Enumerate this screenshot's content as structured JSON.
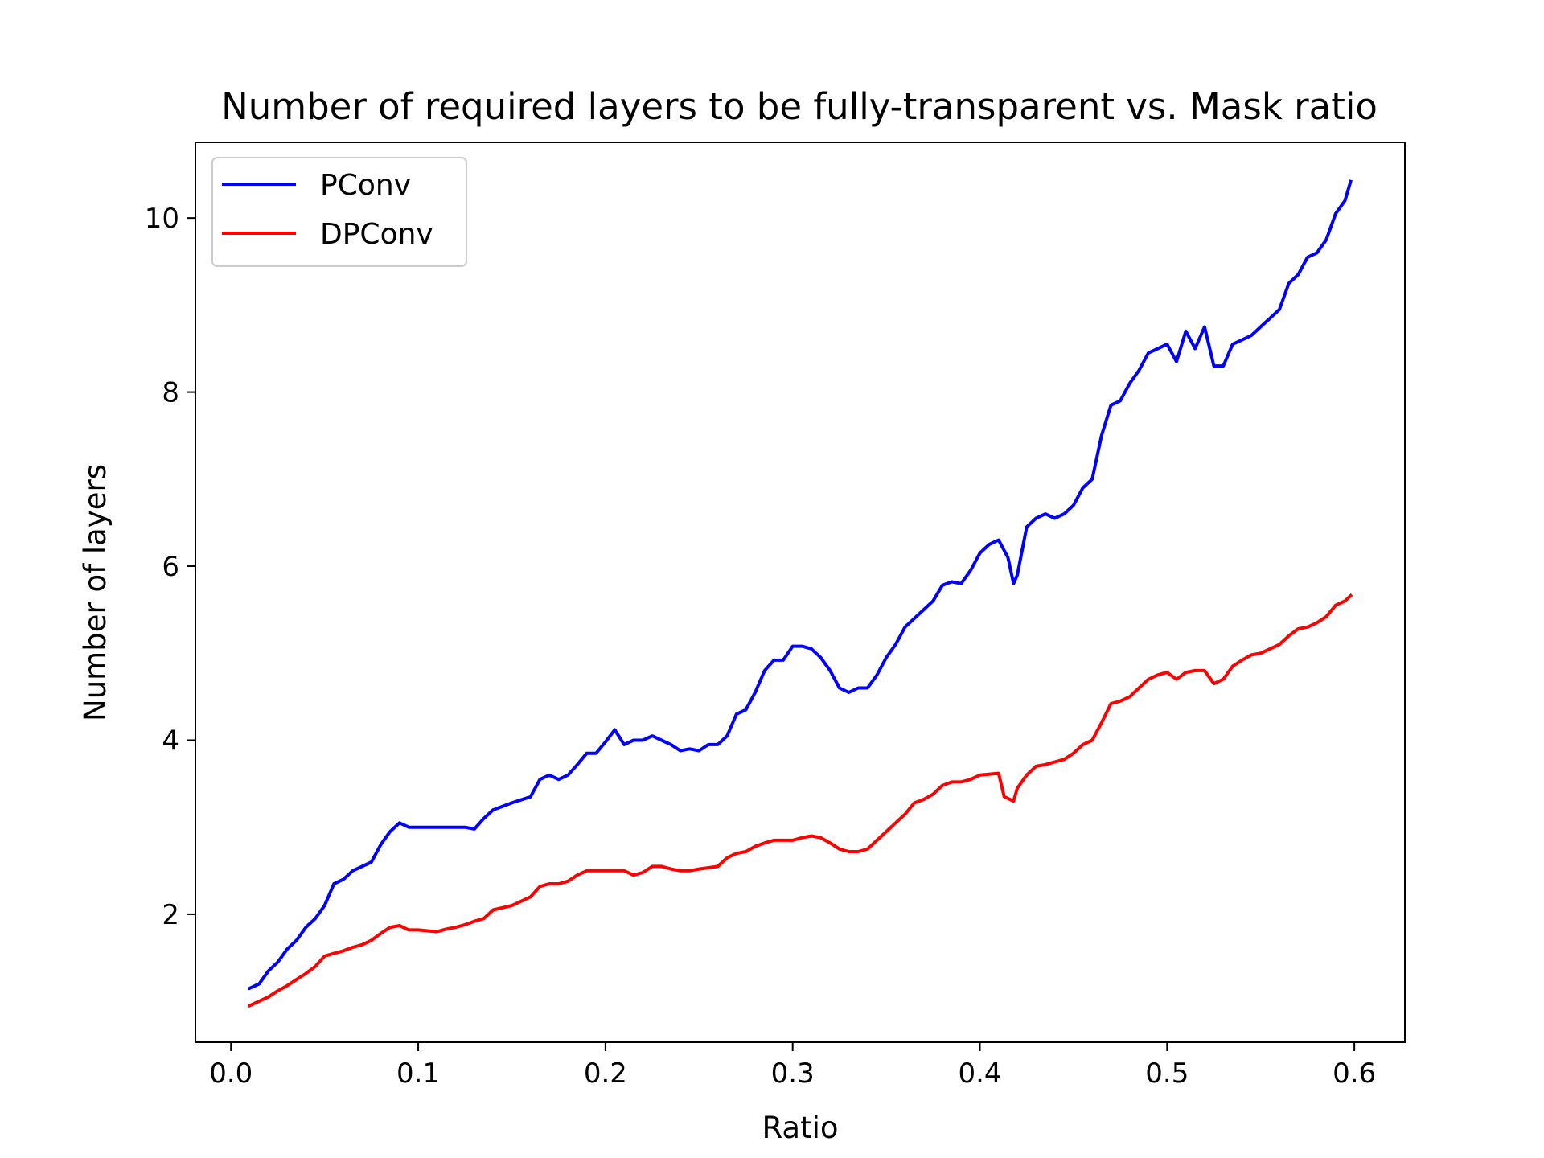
{
  "chart_data": {
    "type": "line",
    "title": "Number of required layers to be fully-transparent vs. Mask ratio",
    "xlabel": "Ratio",
    "ylabel": "Number of layers",
    "xlim": [
      -0.019,
      0.627
    ],
    "ylim": [
      0.53,
      10.87
    ],
    "xticks": [
      {
        "value": 0.0,
        "label": "0.0"
      },
      {
        "value": 0.1,
        "label": "0.1"
      },
      {
        "value": 0.2,
        "label": "0.2"
      },
      {
        "value": 0.3,
        "label": "0.3"
      },
      {
        "value": 0.4,
        "label": "0.4"
      },
      {
        "value": 0.5,
        "label": "0.5"
      },
      {
        "value": 0.6,
        "label": "0.6"
      }
    ],
    "yticks": [
      {
        "value": 2,
        "label": "2"
      },
      {
        "value": 4,
        "label": "4"
      },
      {
        "value": 6,
        "label": "6"
      },
      {
        "value": 8,
        "label": "8"
      },
      {
        "value": 10,
        "label": "10"
      }
    ],
    "grid": false,
    "legend_position": "top-left",
    "series": [
      {
        "name": "PConv",
        "color": "#0000ff",
        "points": [
          [
            0.01,
            1.15
          ],
          [
            0.015,
            1.2
          ],
          [
            0.02,
            1.35
          ],
          [
            0.025,
            1.45
          ],
          [
            0.03,
            1.6
          ],
          [
            0.035,
            1.7
          ],
          [
            0.04,
            1.85
          ],
          [
            0.045,
            1.95
          ],
          [
            0.05,
            2.1
          ],
          [
            0.055,
            2.35
          ],
          [
            0.06,
            2.4
          ],
          [
            0.065,
            2.5
          ],
          [
            0.07,
            2.55
          ],
          [
            0.075,
            2.6
          ],
          [
            0.08,
            2.8
          ],
          [
            0.085,
            2.95
          ],
          [
            0.09,
            3.05
          ],
          [
            0.095,
            3.0
          ],
          [
            0.1,
            3.0
          ],
          [
            0.11,
            3.0
          ],
          [
            0.12,
            3.0
          ],
          [
            0.125,
            3.0
          ],
          [
            0.13,
            2.98
          ],
          [
            0.135,
            3.1
          ],
          [
            0.14,
            3.2
          ],
          [
            0.15,
            3.28
          ],
          [
            0.16,
            3.35
          ],
          [
            0.165,
            3.55
          ],
          [
            0.17,
            3.6
          ],
          [
            0.175,
            3.55
          ],
          [
            0.18,
            3.6
          ],
          [
            0.185,
            3.72
          ],
          [
            0.19,
            3.85
          ],
          [
            0.195,
            3.85
          ],
          [
            0.2,
            3.98
          ],
          [
            0.205,
            4.12
          ],
          [
            0.21,
            3.95
          ],
          [
            0.215,
            4.0
          ],
          [
            0.22,
            4.0
          ],
          [
            0.225,
            4.05
          ],
          [
            0.23,
            4.0
          ],
          [
            0.235,
            3.95
          ],
          [
            0.24,
            3.88
          ],
          [
            0.245,
            3.9
          ],
          [
            0.25,
            3.88
          ],
          [
            0.255,
            3.95
          ],
          [
            0.26,
            3.95
          ],
          [
            0.265,
            4.05
          ],
          [
            0.27,
            4.3
          ],
          [
            0.275,
            4.35
          ],
          [
            0.28,
            4.55
          ],
          [
            0.285,
            4.8
          ],
          [
            0.29,
            4.92
          ],
          [
            0.295,
            4.92
          ],
          [
            0.3,
            5.08
          ],
          [
            0.305,
            5.08
          ],
          [
            0.31,
            5.05
          ],
          [
            0.315,
            4.95
          ],
          [
            0.32,
            4.8
          ],
          [
            0.325,
            4.6
          ],
          [
            0.33,
            4.55
          ],
          [
            0.335,
            4.6
          ],
          [
            0.34,
            4.6
          ],
          [
            0.345,
            4.75
          ],
          [
            0.35,
            4.95
          ],
          [
            0.355,
            5.1
          ],
          [
            0.36,
            5.3
          ],
          [
            0.365,
            5.4
          ],
          [
            0.37,
            5.5
          ],
          [
            0.375,
            5.6
          ],
          [
            0.38,
            5.78
          ],
          [
            0.385,
            5.82
          ],
          [
            0.39,
            5.8
          ],
          [
            0.395,
            5.95
          ],
          [
            0.4,
            6.15
          ],
          [
            0.405,
            6.25
          ],
          [
            0.41,
            6.3
          ],
          [
            0.415,
            6.1
          ],
          [
            0.418,
            5.8
          ],
          [
            0.42,
            5.9
          ],
          [
            0.425,
            6.45
          ],
          [
            0.43,
            6.55
          ],
          [
            0.435,
            6.6
          ],
          [
            0.44,
            6.55
          ],
          [
            0.445,
            6.6
          ],
          [
            0.45,
            6.7
          ],
          [
            0.455,
            6.9
          ],
          [
            0.46,
            7.0
          ],
          [
            0.465,
            7.5
          ],
          [
            0.47,
            7.85
          ],
          [
            0.475,
            7.9
          ],
          [
            0.48,
            8.1
          ],
          [
            0.485,
            8.25
          ],
          [
            0.49,
            8.45
          ],
          [
            0.495,
            8.5
          ],
          [
            0.5,
            8.55
          ],
          [
            0.505,
            8.35
          ],
          [
            0.51,
            8.7
          ],
          [
            0.515,
            8.5
          ],
          [
            0.52,
            8.75
          ],
          [
            0.525,
            8.3
          ],
          [
            0.53,
            8.3
          ],
          [
            0.535,
            8.55
          ],
          [
            0.54,
            8.6
          ],
          [
            0.545,
            8.65
          ],
          [
            0.55,
            8.75
          ],
          [
            0.555,
            8.85
          ],
          [
            0.56,
            8.95
          ],
          [
            0.565,
            9.25
          ],
          [
            0.57,
            9.35
          ],
          [
            0.575,
            9.55
          ],
          [
            0.58,
            9.6
          ],
          [
            0.585,
            9.75
          ],
          [
            0.59,
            10.05
          ],
          [
            0.595,
            10.2
          ],
          [
            0.598,
            10.42
          ]
        ]
      },
      {
        "name": "DPConv",
        "color": "#ff0000",
        "points": [
          [
            0.01,
            0.95
          ],
          [
            0.015,
            1.0
          ],
          [
            0.02,
            1.05
          ],
          [
            0.025,
            1.12
          ],
          [
            0.03,
            1.18
          ],
          [
            0.035,
            1.25
          ],
          [
            0.04,
            1.32
          ],
          [
            0.045,
            1.4
          ],
          [
            0.05,
            1.52
          ],
          [
            0.055,
            1.55
          ],
          [
            0.06,
            1.58
          ],
          [
            0.065,
            1.62
          ],
          [
            0.07,
            1.65
          ],
          [
            0.075,
            1.7
          ],
          [
            0.08,
            1.78
          ],
          [
            0.085,
            1.85
          ],
          [
            0.09,
            1.87
          ],
          [
            0.095,
            1.82
          ],
          [
            0.1,
            1.82
          ],
          [
            0.11,
            1.8
          ],
          [
            0.115,
            1.83
          ],
          [
            0.12,
            1.85
          ],
          [
            0.125,
            1.88
          ],
          [
            0.13,
            1.92
          ],
          [
            0.135,
            1.95
          ],
          [
            0.14,
            2.05
          ],
          [
            0.15,
            2.1
          ],
          [
            0.16,
            2.2
          ],
          [
            0.165,
            2.32
          ],
          [
            0.17,
            2.35
          ],
          [
            0.175,
            2.35
          ],
          [
            0.18,
            2.38
          ],
          [
            0.185,
            2.45
          ],
          [
            0.19,
            2.5
          ],
          [
            0.195,
            2.5
          ],
          [
            0.2,
            2.5
          ],
          [
            0.21,
            2.5
          ],
          [
            0.215,
            2.45
          ],
          [
            0.22,
            2.48
          ],
          [
            0.225,
            2.55
          ],
          [
            0.23,
            2.55
          ],
          [
            0.235,
            2.52
          ],
          [
            0.24,
            2.5
          ],
          [
            0.245,
            2.5
          ],
          [
            0.25,
            2.52
          ],
          [
            0.26,
            2.55
          ],
          [
            0.265,
            2.65
          ],
          [
            0.27,
            2.7
          ],
          [
            0.275,
            2.72
          ],
          [
            0.28,
            2.78
          ],
          [
            0.285,
            2.82
          ],
          [
            0.29,
            2.85
          ],
          [
            0.295,
            2.85
          ],
          [
            0.3,
            2.85
          ],
          [
            0.305,
            2.88
          ],
          [
            0.31,
            2.9
          ],
          [
            0.315,
            2.88
          ],
          [
            0.32,
            2.82
          ],
          [
            0.325,
            2.75
          ],
          [
            0.33,
            2.72
          ],
          [
            0.335,
            2.72
          ],
          [
            0.34,
            2.75
          ],
          [
            0.345,
            2.85
          ],
          [
            0.35,
            2.95
          ],
          [
            0.355,
            3.05
          ],
          [
            0.36,
            3.15
          ],
          [
            0.365,
            3.28
          ],
          [
            0.37,
            3.32
          ],
          [
            0.375,
            3.38
          ],
          [
            0.38,
            3.48
          ],
          [
            0.385,
            3.52
          ],
          [
            0.39,
            3.52
          ],
          [
            0.395,
            3.55
          ],
          [
            0.4,
            3.6
          ],
          [
            0.41,
            3.62
          ],
          [
            0.413,
            3.35
          ],
          [
            0.418,
            3.3
          ],
          [
            0.42,
            3.45
          ],
          [
            0.425,
            3.6
          ],
          [
            0.43,
            3.7
          ],
          [
            0.435,
            3.72
          ],
          [
            0.44,
            3.75
          ],
          [
            0.445,
            3.78
          ],
          [
            0.45,
            3.85
          ],
          [
            0.455,
            3.95
          ],
          [
            0.46,
            4.0
          ],
          [
            0.465,
            4.2
          ],
          [
            0.47,
            4.42
          ],
          [
            0.475,
            4.45
          ],
          [
            0.48,
            4.5
          ],
          [
            0.485,
            4.6
          ],
          [
            0.49,
            4.7
          ],
          [
            0.495,
            4.75
          ],
          [
            0.5,
            4.78
          ],
          [
            0.505,
            4.7
          ],
          [
            0.51,
            4.78
          ],
          [
            0.515,
            4.8
          ],
          [
            0.52,
            4.8
          ],
          [
            0.525,
            4.65
          ],
          [
            0.53,
            4.7
          ],
          [
            0.535,
            4.85
          ],
          [
            0.54,
            4.92
          ],
          [
            0.545,
            4.98
          ],
          [
            0.55,
            5.0
          ],
          [
            0.555,
            5.05
          ],
          [
            0.56,
            5.1
          ],
          [
            0.565,
            5.2
          ],
          [
            0.57,
            5.28
          ],
          [
            0.575,
            5.3
          ],
          [
            0.58,
            5.35
          ],
          [
            0.585,
            5.42
          ],
          [
            0.59,
            5.55
          ],
          [
            0.595,
            5.6
          ],
          [
            0.598,
            5.66
          ]
        ]
      }
    ]
  }
}
